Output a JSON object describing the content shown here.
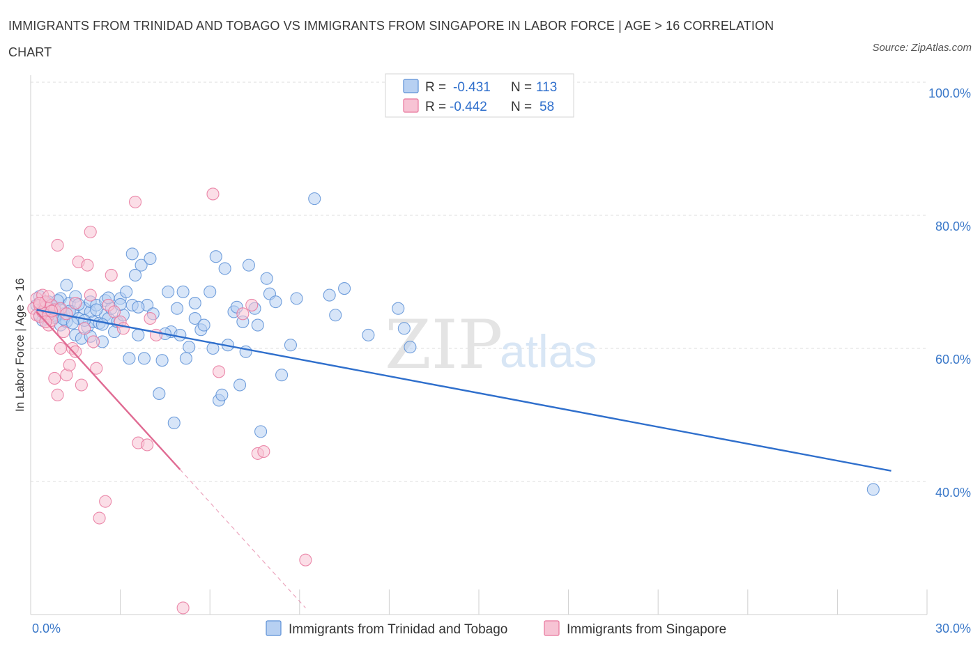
{
  "header": {
    "title": "IMMIGRANTS FROM TRINIDAD AND TOBAGO VS IMMIGRANTS FROM SINGAPORE IN LABOR FORCE | AGE > 16 CORRELATION CHART",
    "source": "Source: ZipAtlas.com"
  },
  "watermark": {
    "zip": "ZIP",
    "atlas": "atlas"
  },
  "colors": {
    "blue": "#5b8fd6",
    "blue_fill": "#b7d0f2",
    "blue_line": "#2f6fcc",
    "pink": "#e8769c",
    "pink_fill": "#f7c3d4",
    "pink_line": "#e06b93",
    "grid": "#dddddd",
    "axis_text": "#3a78c9"
  },
  "chart_data": {
    "type": "scatter",
    "title": "IMMIGRANTS FROM TRINIDAD AND TOBAGO VS IMMIGRANTS FROM SINGAPORE IN LABOR FORCE | AGE > 16 CORRELATION CHART",
    "xlabel": "",
    "ylabel": "In Labor Force | Age > 16",
    "xlim": [
      0,
      30
    ],
    "ylim": [
      20,
      100
    ],
    "x_tick_labels": [
      "0.0%",
      "30.0%"
    ],
    "y_ticks": [
      40,
      60,
      80,
      100
    ],
    "y_tick_labels": [
      "40.0%",
      "60.0%",
      "80.0%",
      "100.0%"
    ],
    "legend": {
      "entries": [
        {
          "r_label": "R =",
          "r_value": "-0.431",
          "n_label": "N =",
          "n_value": "113"
        },
        {
          "r_label": "R =",
          "r_value": "-0.442",
          "n_label": "N =",
          "n_value": "58"
        }
      ]
    },
    "bottom_legend": [
      "Immigrants from Trinidad and Tobago",
      "Immigrants from Singapore"
    ],
    "series": [
      {
        "name": "Immigrants from Trinidad and Tobago",
        "color": "#5b8fd6",
        "R": -0.431,
        "N": 113,
        "trendline": {
          "x": [
            0.2,
            28.8
          ],
          "y": [
            65.8,
            41.6
          ]
        },
        "points": [
          [
            0.2,
            66.5
          ],
          [
            0.3,
            65.0
          ],
          [
            0.4,
            66.0
          ],
          [
            0.5,
            65.5
          ],
          [
            0.5,
            64.5
          ],
          [
            0.6,
            67.0
          ],
          [
            0.6,
            65.8
          ],
          [
            0.7,
            64.8
          ],
          [
            0.8,
            66.2
          ],
          [
            0.9,
            65.0
          ],
          [
            1.0,
            63.5
          ],
          [
            1.0,
            67.5
          ],
          [
            1.1,
            65.2
          ],
          [
            1.2,
            69.5
          ],
          [
            1.2,
            64.0
          ],
          [
            1.3,
            66.8
          ],
          [
            1.4,
            65.5
          ],
          [
            1.5,
            62.0
          ],
          [
            1.5,
            67.8
          ],
          [
            1.6,
            64.5
          ],
          [
            1.7,
            61.5
          ],
          [
            1.8,
            66.0
          ],
          [
            1.9,
            63.2
          ],
          [
            2.0,
            65.5
          ],
          [
            2.0,
            67.0
          ],
          [
            2.1,
            64.0
          ],
          [
            2.2,
            66.5
          ],
          [
            2.3,
            63.8
          ],
          [
            2.4,
            61.0
          ],
          [
            2.5,
            65.0
          ],
          [
            2.5,
            67.2
          ],
          [
            2.6,
            64.5
          ],
          [
            2.7,
            66.0
          ],
          [
            2.8,
            62.5
          ],
          [
            2.9,
            64.0
          ],
          [
            3.0,
            67.5
          ],
          [
            3.1,
            65.0
          ],
          [
            3.2,
            68.5
          ],
          [
            3.3,
            58.5
          ],
          [
            3.4,
            74.2
          ],
          [
            3.4,
            66.5
          ],
          [
            3.5,
            71.0
          ],
          [
            3.6,
            62.0
          ],
          [
            3.7,
            72.5
          ],
          [
            3.8,
            58.5
          ],
          [
            3.9,
            66.5
          ],
          [
            4.0,
            73.5
          ],
          [
            4.3,
            53.2
          ],
          [
            4.4,
            58.2
          ],
          [
            4.6,
            68.5
          ],
          [
            4.7,
            62.5
          ],
          [
            4.8,
            48.8
          ],
          [
            4.9,
            66.0
          ],
          [
            5.0,
            62.0
          ],
          [
            5.1,
            68.5
          ],
          [
            5.2,
            58.5
          ],
          [
            5.3,
            60.2
          ],
          [
            5.5,
            64.5
          ],
          [
            5.7,
            62.8
          ],
          [
            5.8,
            63.5
          ],
          [
            6.0,
            68.5
          ],
          [
            6.1,
            60.0
          ],
          [
            6.2,
            73.8
          ],
          [
            6.3,
            52.2
          ],
          [
            6.4,
            53.0
          ],
          [
            6.5,
            72.0
          ],
          [
            6.6,
            60.5
          ],
          [
            6.8,
            65.5
          ],
          [
            7.0,
            54.5
          ],
          [
            7.1,
            64.0
          ],
          [
            7.2,
            59.5
          ],
          [
            7.3,
            72.5
          ],
          [
            7.5,
            66.0
          ],
          [
            7.6,
            63.5
          ],
          [
            7.7,
            47.5
          ],
          [
            7.9,
            70.5
          ],
          [
            8.0,
            68.2
          ],
          [
            8.2,
            67.0
          ],
          [
            8.4,
            56.0
          ],
          [
            8.7,
            60.5
          ],
          [
            8.9,
            67.5
          ],
          [
            9.5,
            82.5
          ],
          [
            10.0,
            68.0
          ],
          [
            10.2,
            65.0
          ],
          [
            10.5,
            69.0
          ],
          [
            11.3,
            62.0
          ],
          [
            12.3,
            66.0
          ],
          [
            12.5,
            63.0
          ],
          [
            12.7,
            60.2
          ],
          [
            0.3,
            67.8
          ],
          [
            0.4,
            64.2
          ],
          [
            0.5,
            66.8
          ],
          [
            0.6,
            65.2
          ],
          [
            0.7,
            66.4
          ],
          [
            0.8,
            64.6
          ],
          [
            0.9,
            67.2
          ],
          [
            1.0,
            65.8
          ],
          [
            1.1,
            64.4
          ],
          [
            1.3,
            65.6
          ],
          [
            1.4,
            63.8
          ],
          [
            1.6,
            66.6
          ],
          [
            1.8,
            64.2
          ],
          [
            2.0,
            61.8
          ],
          [
            2.2,
            65.8
          ],
          [
            2.4,
            63.6
          ],
          [
            2.6,
            67.6
          ],
          [
            3.0,
            66.6
          ],
          [
            3.6,
            66.2
          ],
          [
            4.1,
            65.2
          ],
          [
            4.5,
            62.2
          ],
          [
            5.5,
            66.8
          ],
          [
            6.9,
            66.2
          ],
          [
            28.2,
            38.8
          ]
        ]
      },
      {
        "name": "Immigrants from Singapore",
        "color": "#e8769c",
        "R": -0.442,
        "N": 58,
        "trendline": {
          "x": [
            0.2,
            5.0
          ],
          "y": [
            65.5,
            41.8
          ]
        },
        "trendline_dashed": {
          "x": [
            5.0,
            9.2
          ],
          "y": [
            41.8,
            21.0
          ]
        },
        "points": [
          [
            0.1,
            66.0
          ],
          [
            0.2,
            67.5
          ],
          [
            0.2,
            65.0
          ],
          [
            0.3,
            66.5
          ],
          [
            0.3,
            64.8
          ],
          [
            0.4,
            68.0
          ],
          [
            0.4,
            65.5
          ],
          [
            0.5,
            66.2
          ],
          [
            0.5,
            67.0
          ],
          [
            0.6,
            65.0
          ],
          [
            0.6,
            63.5
          ],
          [
            0.7,
            66.5
          ],
          [
            0.7,
            64.2
          ],
          [
            0.8,
            65.8
          ],
          [
            0.8,
            55.5
          ],
          [
            0.9,
            75.5
          ],
          [
            0.9,
            53.0
          ],
          [
            1.0,
            66.0
          ],
          [
            1.0,
            60.0
          ],
          [
            1.1,
            62.5
          ],
          [
            1.2,
            56.0
          ],
          [
            1.2,
            65.2
          ],
          [
            1.3,
            57.5
          ],
          [
            1.4,
            60.0
          ],
          [
            1.5,
            59.5
          ],
          [
            1.6,
            73.0
          ],
          [
            1.7,
            54.5
          ],
          [
            1.8,
            63.0
          ],
          [
            1.9,
            72.5
          ],
          [
            2.0,
            77.5
          ],
          [
            2.0,
            68.0
          ],
          [
            2.1,
            61.0
          ],
          [
            2.2,
            57.0
          ],
          [
            2.3,
            34.5
          ],
          [
            2.5,
            37.0
          ],
          [
            2.6,
            66.5
          ],
          [
            2.7,
            71.0
          ],
          [
            2.8,
            65.5
          ],
          [
            3.0,
            64.0
          ],
          [
            3.1,
            63.0
          ],
          [
            3.5,
            82.0
          ],
          [
            3.6,
            45.8
          ],
          [
            3.9,
            45.5
          ],
          [
            4.0,
            64.5
          ],
          [
            4.2,
            62.0
          ],
          [
            5.1,
            21.0
          ],
          [
            6.1,
            83.2
          ],
          [
            6.3,
            56.5
          ],
          [
            7.1,
            65.2
          ],
          [
            7.4,
            66.5
          ],
          [
            7.6,
            44.2
          ],
          [
            7.8,
            44.5
          ],
          [
            9.2,
            28.2
          ],
          [
            0.3,
            66.8
          ],
          [
            0.5,
            64.0
          ],
          [
            0.6,
            67.8
          ],
          [
            0.7,
            65.6
          ],
          [
            1.5,
            66.8
          ]
        ]
      }
    ]
  }
}
